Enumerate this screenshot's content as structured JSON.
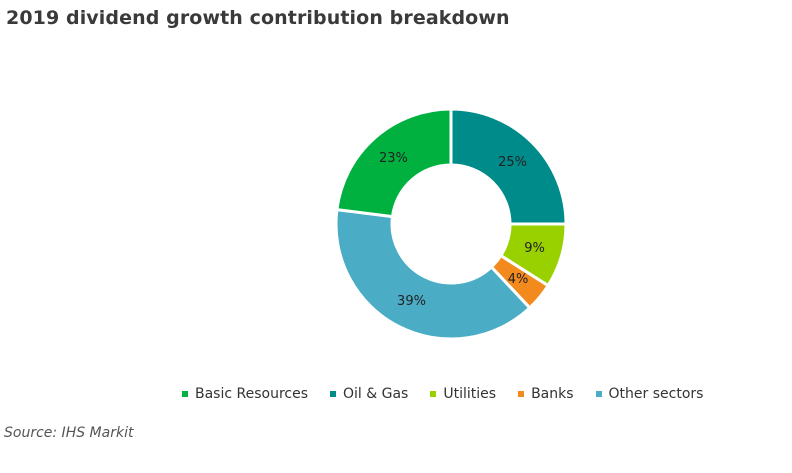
{
  "chart_data": {
    "type": "pie",
    "variant": "donut",
    "title": "2019 dividend growth contribution breakdown",
    "categories": [
      "Oil & Gas",
      "Utilities",
      "Banks",
      "Other sectors",
      "Basic Resources"
    ],
    "values": [
      25,
      9,
      4,
      39,
      23
    ],
    "data_labels": [
      "25%",
      "9%",
      "4%",
      "39%",
      "23%"
    ],
    "colors": [
      "#008B8B",
      "#99D100",
      "#F28A1E",
      "#4BACC6",
      "#00B140"
    ],
    "legend": {
      "placement": "bottom",
      "entries": [
        {
          "label": "Basic Resources",
          "color": "#00B140"
        },
        {
          "label": "Oil & Gas",
          "color": "#008B8B"
        },
        {
          "label": "Utilities",
          "color": "#99D100"
        },
        {
          "label": "Banks",
          "color": "#F28A1E"
        },
        {
          "label": "Other sectors",
          "color": "#4BACC6"
        }
      ]
    }
  },
  "source": "Source: IHS Markit"
}
